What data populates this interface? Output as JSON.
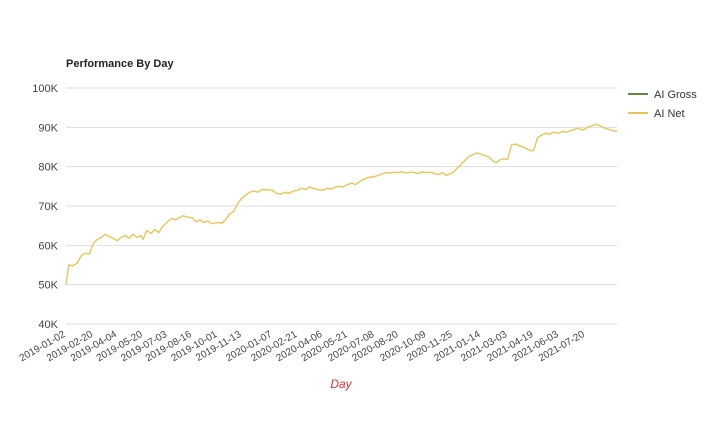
{
  "chart_data": {
    "type": "line",
    "title": "Performance By Day",
    "xlabel": "Day",
    "ylabel": "",
    "ylim": [
      40000,
      100000
    ],
    "y_ticks": [
      {
        "value": 40000,
        "label": "40K"
      },
      {
        "value": 50000,
        "label": "50K"
      },
      {
        "value": 60000,
        "label": "60K"
      },
      {
        "value": 70000,
        "label": "70K"
      },
      {
        "value": 80000,
        "label": "80K"
      },
      {
        "value": 90000,
        "label": "90K"
      },
      {
        "value": 100000,
        "label": "100K"
      }
    ],
    "x_range": [
      "2019-01-02",
      "2021-09-15"
    ],
    "x_ticks": [
      "2019-01-02",
      "2019-02-20",
      "2019-04-04",
      "2019-05-20",
      "2019-07-03",
      "2019-08-16",
      "2019-10-01",
      "2019-11-13",
      "2020-01-07",
      "2020-02-21",
      "2020-04-06",
      "2020-05-21",
      "2020-07-08",
      "2020-08-20",
      "2020-10-09",
      "2020-11-25",
      "2021-01-14",
      "2021-03-03",
      "2021-04-19",
      "2021-06-03",
      "2021-07-20"
    ],
    "grid": true,
    "legend_position": "right",
    "colors": {
      "ai_gross": "#5b8c3a",
      "ai_net": "#e8c55a",
      "xlabel": "#e03030"
    },
    "series": [
      {
        "name": "AI Gross",
        "points": []
      },
      {
        "name": "AI Net",
        "points": [
          [
            "2019-01-02",
            50000
          ],
          [
            "2019-01-07",
            55000
          ],
          [
            "2019-01-14",
            54800
          ],
          [
            "2019-01-22",
            55500
          ],
          [
            "2019-01-30",
            57500
          ],
          [
            "2019-02-06",
            58000
          ],
          [
            "2019-02-13",
            57800
          ],
          [
            "2019-02-20",
            60500
          ],
          [
            "2019-02-27",
            61500
          ],
          [
            "2019-03-06",
            62000
          ],
          [
            "2019-03-13",
            62800
          ],
          [
            "2019-03-20",
            62300
          ],
          [
            "2019-03-27",
            61800
          ],
          [
            "2019-04-04",
            61200
          ],
          [
            "2019-04-11",
            62000
          ],
          [
            "2019-04-18",
            62500
          ],
          [
            "2019-04-25",
            61800
          ],
          [
            "2019-05-02",
            62800
          ],
          [
            "2019-05-09",
            62000
          ],
          [
            "2019-05-16",
            62500
          ],
          [
            "2019-05-20",
            61500
          ],
          [
            "2019-05-27",
            63800
          ],
          [
            "2019-06-03",
            63000
          ],
          [
            "2019-06-10",
            64000
          ],
          [
            "2019-06-17",
            63200
          ],
          [
            "2019-06-24",
            64800
          ],
          [
            "2019-07-03",
            66000
          ],
          [
            "2019-07-10",
            66800
          ],
          [
            "2019-07-17",
            66500
          ],
          [
            "2019-07-24",
            67000
          ],
          [
            "2019-07-31",
            67500
          ],
          [
            "2019-08-07",
            67200
          ],
          [
            "2019-08-16",
            67000
          ],
          [
            "2019-08-23",
            66000
          ],
          [
            "2019-08-30",
            66500
          ],
          [
            "2019-09-06",
            65800
          ],
          [
            "2019-09-13",
            66200
          ],
          [
            "2019-09-20",
            65500
          ],
          [
            "2019-10-01",
            65800
          ],
          [
            "2019-10-08",
            65600
          ],
          [
            "2019-10-15",
            66500
          ],
          [
            "2019-10-22",
            68000
          ],
          [
            "2019-10-29",
            68500
          ],
          [
            "2019-11-05",
            70500
          ],
          [
            "2019-11-13",
            72000
          ],
          [
            "2019-11-20",
            72800
          ],
          [
            "2019-11-27",
            73500
          ],
          [
            "2019-12-05",
            73800
          ],
          [
            "2019-12-12",
            73500
          ],
          [
            "2019-12-19",
            74200
          ],
          [
            "2020-01-07",
            74000
          ],
          [
            "2020-01-14",
            73200
          ],
          [
            "2020-01-22",
            73000
          ],
          [
            "2020-01-29",
            73500
          ],
          [
            "2020-02-05",
            73200
          ],
          [
            "2020-02-13",
            73800
          ],
          [
            "2020-02-21",
            74000
          ],
          [
            "2020-02-28",
            74500
          ],
          [
            "2020-03-06",
            74200
          ],
          [
            "2020-03-13",
            74800
          ],
          [
            "2020-03-20",
            74500
          ],
          [
            "2020-03-27",
            74200
          ],
          [
            "2020-04-06",
            74000
          ],
          [
            "2020-04-14",
            74500
          ],
          [
            "2020-04-21",
            74300
          ],
          [
            "2020-04-28",
            74800
          ],
          [
            "2020-05-05",
            75000
          ],
          [
            "2020-05-12",
            74800
          ],
          [
            "2020-05-21",
            75500
          ],
          [
            "2020-05-28",
            75800
          ],
          [
            "2020-06-04",
            75500
          ],
          [
            "2020-06-11",
            76200
          ],
          [
            "2020-06-18",
            76800
          ],
          [
            "2020-06-25",
            77200
          ],
          [
            "2020-07-08",
            77500
          ],
          [
            "2020-07-15",
            77800
          ],
          [
            "2020-07-22",
            78200
          ],
          [
            "2020-07-29",
            78500
          ],
          [
            "2020-08-05",
            78400
          ],
          [
            "2020-08-12",
            78600
          ],
          [
            "2020-08-20",
            78500
          ],
          [
            "2020-08-27",
            78700
          ],
          [
            "2020-09-03",
            78400
          ],
          [
            "2020-09-10",
            78600
          ],
          [
            "2020-09-17",
            78500
          ],
          [
            "2020-09-24",
            78300
          ],
          [
            "2020-10-01",
            78700
          ],
          [
            "2020-10-09",
            78500
          ],
          [
            "2020-10-16",
            78600
          ],
          [
            "2020-10-23",
            78200
          ],
          [
            "2020-10-30",
            78000
          ],
          [
            "2020-11-06",
            78500
          ],
          [
            "2020-11-13",
            77800
          ],
          [
            "2020-11-25",
            78500
          ],
          [
            "2020-12-02",
            79500
          ],
          [
            "2020-12-09",
            80500
          ],
          [
            "2020-12-16",
            81500
          ],
          [
            "2020-12-23",
            82500
          ],
          [
            "2020-12-30",
            83000
          ],
          [
            "2021-01-07",
            83500
          ],
          [
            "2021-01-14",
            83200
          ],
          [
            "2021-01-21",
            82800
          ],
          [
            "2021-01-28",
            82500
          ],
          [
            "2021-02-04",
            81500
          ],
          [
            "2021-02-11",
            81000
          ],
          [
            "2021-02-18",
            81800
          ],
          [
            "2021-02-25",
            82000
          ],
          [
            "2021-03-03",
            81800
          ],
          [
            "2021-03-10",
            85500
          ],
          [
            "2021-03-17",
            85800
          ],
          [
            "2021-03-24",
            85300
          ],
          [
            "2021-03-31",
            85000
          ],
          [
            "2021-04-07",
            84500
          ],
          [
            "2021-04-13",
            84000
          ],
          [
            "2021-04-19",
            84200
          ],
          [
            "2021-04-26",
            87500
          ],
          [
            "2021-05-03",
            88000
          ],
          [
            "2021-05-10",
            88500
          ],
          [
            "2021-05-17",
            88200
          ],
          [
            "2021-05-24",
            88800
          ],
          [
            "2021-06-03",
            88500
          ],
          [
            "2021-06-10",
            89000
          ],
          [
            "2021-06-17",
            88700
          ],
          [
            "2021-06-24",
            89200
          ],
          [
            "2021-07-01",
            89500
          ],
          [
            "2021-07-08",
            89800
          ],
          [
            "2021-07-15",
            89300
          ],
          [
            "2021-07-20",
            89600
          ],
          [
            "2021-07-27",
            90200
          ],
          [
            "2021-08-03",
            90500
          ],
          [
            "2021-08-10",
            90800
          ],
          [
            "2021-08-17",
            90300
          ],
          [
            "2021-08-24",
            89800
          ],
          [
            "2021-08-31",
            89500
          ],
          [
            "2021-09-07",
            89200
          ],
          [
            "2021-09-15",
            89000
          ]
        ]
      }
    ]
  }
}
